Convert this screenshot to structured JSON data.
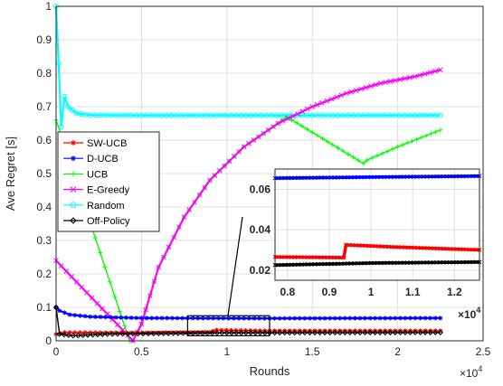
{
  "chart_data": [
    {
      "type": "line",
      "xlabel": "Rounds",
      "ylabel": "Ave Regret [s]",
      "x_multiplier_label": "×10",
      "x_multiplier_exp": "4",
      "xlim": [
        0,
        25000
      ],
      "ylim": [
        0,
        1
      ],
      "x_ticks": [
        "0",
        "0.5",
        "1",
        "1.5",
        "2",
        "2.5"
      ],
      "y_ticks": [
        "0",
        "0.1",
        "0.2",
        "0.3",
        "0.4",
        "0.5",
        "0.6",
        "0.7",
        "0.8",
        "0.9",
        "1"
      ],
      "grid": true,
      "legend_position": "middle-left",
      "series": [
        {
          "name": "SW-UCB",
          "color": "#ff0000",
          "marker": "star",
          "points": [
            [
              0,
              0.02
            ],
            [
              500,
              0.025
            ],
            [
              5000,
              0.024
            ],
            [
              9000,
              0.026
            ],
            [
              9400,
              0.032
            ],
            [
              12500,
              0.03
            ],
            [
              22500,
              0.03
            ]
          ]
        },
        {
          "name": "D-UCB",
          "color": "#0000ff",
          "marker": "asterisk",
          "points": [
            [
              0,
              0.1
            ],
            [
              200,
              0.09
            ],
            [
              800,
              0.078
            ],
            [
              2000,
              0.072
            ],
            [
              5000,
              0.068
            ],
            [
              12500,
              0.067
            ],
            [
              22500,
              0.068
            ]
          ]
        },
        {
          "name": "UCB",
          "color": "#00ff00",
          "marker": "plus",
          "points": [
            [
              0,
              0.66
            ],
            [
              4300,
              0.0
            ],
            [
              4500,
              0.0
            ],
            [
              5000,
              0.05
            ],
            [
              6000,
              0.22
            ],
            [
              7500,
              0.37
            ],
            [
              9000,
              0.48
            ],
            [
              11000,
              0.58
            ],
            [
              13000,
              0.65
            ],
            [
              13500,
              0.67
            ],
            [
              18000,
              0.53
            ],
            [
              18200,
              0.54
            ],
            [
              20000,
              0.58
            ],
            [
              22500,
              0.63
            ]
          ]
        },
        {
          "name": "E-Greedy",
          "color": "#ff00ff",
          "marker": "x",
          "points": [
            [
              0,
              0.24
            ],
            [
              4500,
              0.0
            ],
            [
              5000,
              0.05
            ],
            [
              6000,
              0.22
            ],
            [
              7500,
              0.37
            ],
            [
              9000,
              0.48
            ],
            [
              11000,
              0.58
            ],
            [
              13000,
              0.65
            ],
            [
              15000,
              0.7
            ],
            [
              17000,
              0.74
            ],
            [
              19000,
              0.77
            ],
            [
              21000,
              0.79
            ],
            [
              22500,
              0.81
            ]
          ]
        },
        {
          "name": "Random",
          "color": "#00ffff",
          "marker": "circle",
          "points": [
            [
              0,
              1.0
            ],
            [
              150,
              0.83
            ],
            [
              300,
              0.64
            ],
            [
              500,
              0.73
            ],
            [
              700,
              0.7
            ],
            [
              1200,
              0.68
            ],
            [
              2000,
              0.675
            ],
            [
              5000,
              0.674
            ],
            [
              12000,
              0.674
            ],
            [
              22500,
              0.674
            ]
          ]
        },
        {
          "name": "Off-Policy",
          "color": "#000000",
          "marker": "diamond",
          "points": [
            [
              0,
              0.1
            ],
            [
              200,
              0.02
            ],
            [
              1000,
              0.015
            ],
            [
              3000,
              0.02
            ],
            [
              6000,
              0.022
            ],
            [
              10000,
              0.024
            ],
            [
              12500,
              0.024
            ],
            [
              22500,
              0.025
            ]
          ]
        }
      ],
      "zoom_region": {
        "x": [
          7700,
          12500
        ],
        "y": [
          0.015,
          0.075
        ]
      }
    },
    {
      "type": "line",
      "role": "inset",
      "xlim": [
        7700,
        12600
      ],
      "ylim": [
        0.015,
        0.07
      ],
      "x_ticks": [
        "0.8",
        "0.9",
        "1",
        "1.1",
        "1.2"
      ],
      "y_ticks": [
        "0.02",
        "0.04",
        "0.06"
      ],
      "x_multiplier_label": "×10",
      "x_multiplier_exp": "4",
      "series": [
        {
          "name": "D-UCB",
          "color": "#0000ff",
          "points": [
            [
              7700,
              0.0655
            ],
            [
              10000,
              0.066
            ],
            [
              12600,
              0.0665
            ]
          ]
        },
        {
          "name": "SW-UCB",
          "color": "#ff0000",
          "points": [
            [
              7700,
              0.0265
            ],
            [
              9350,
              0.0262
            ],
            [
              9400,
              0.0325
            ],
            [
              10500,
              0.0315
            ],
            [
              12600,
              0.03
            ]
          ]
        },
        {
          "name": "Off-Policy",
          "color": "#000000",
          "points": [
            [
              7700,
              0.0225
            ],
            [
              10000,
              0.0235
            ],
            [
              12600,
              0.024
            ]
          ]
        }
      ]
    }
  ]
}
